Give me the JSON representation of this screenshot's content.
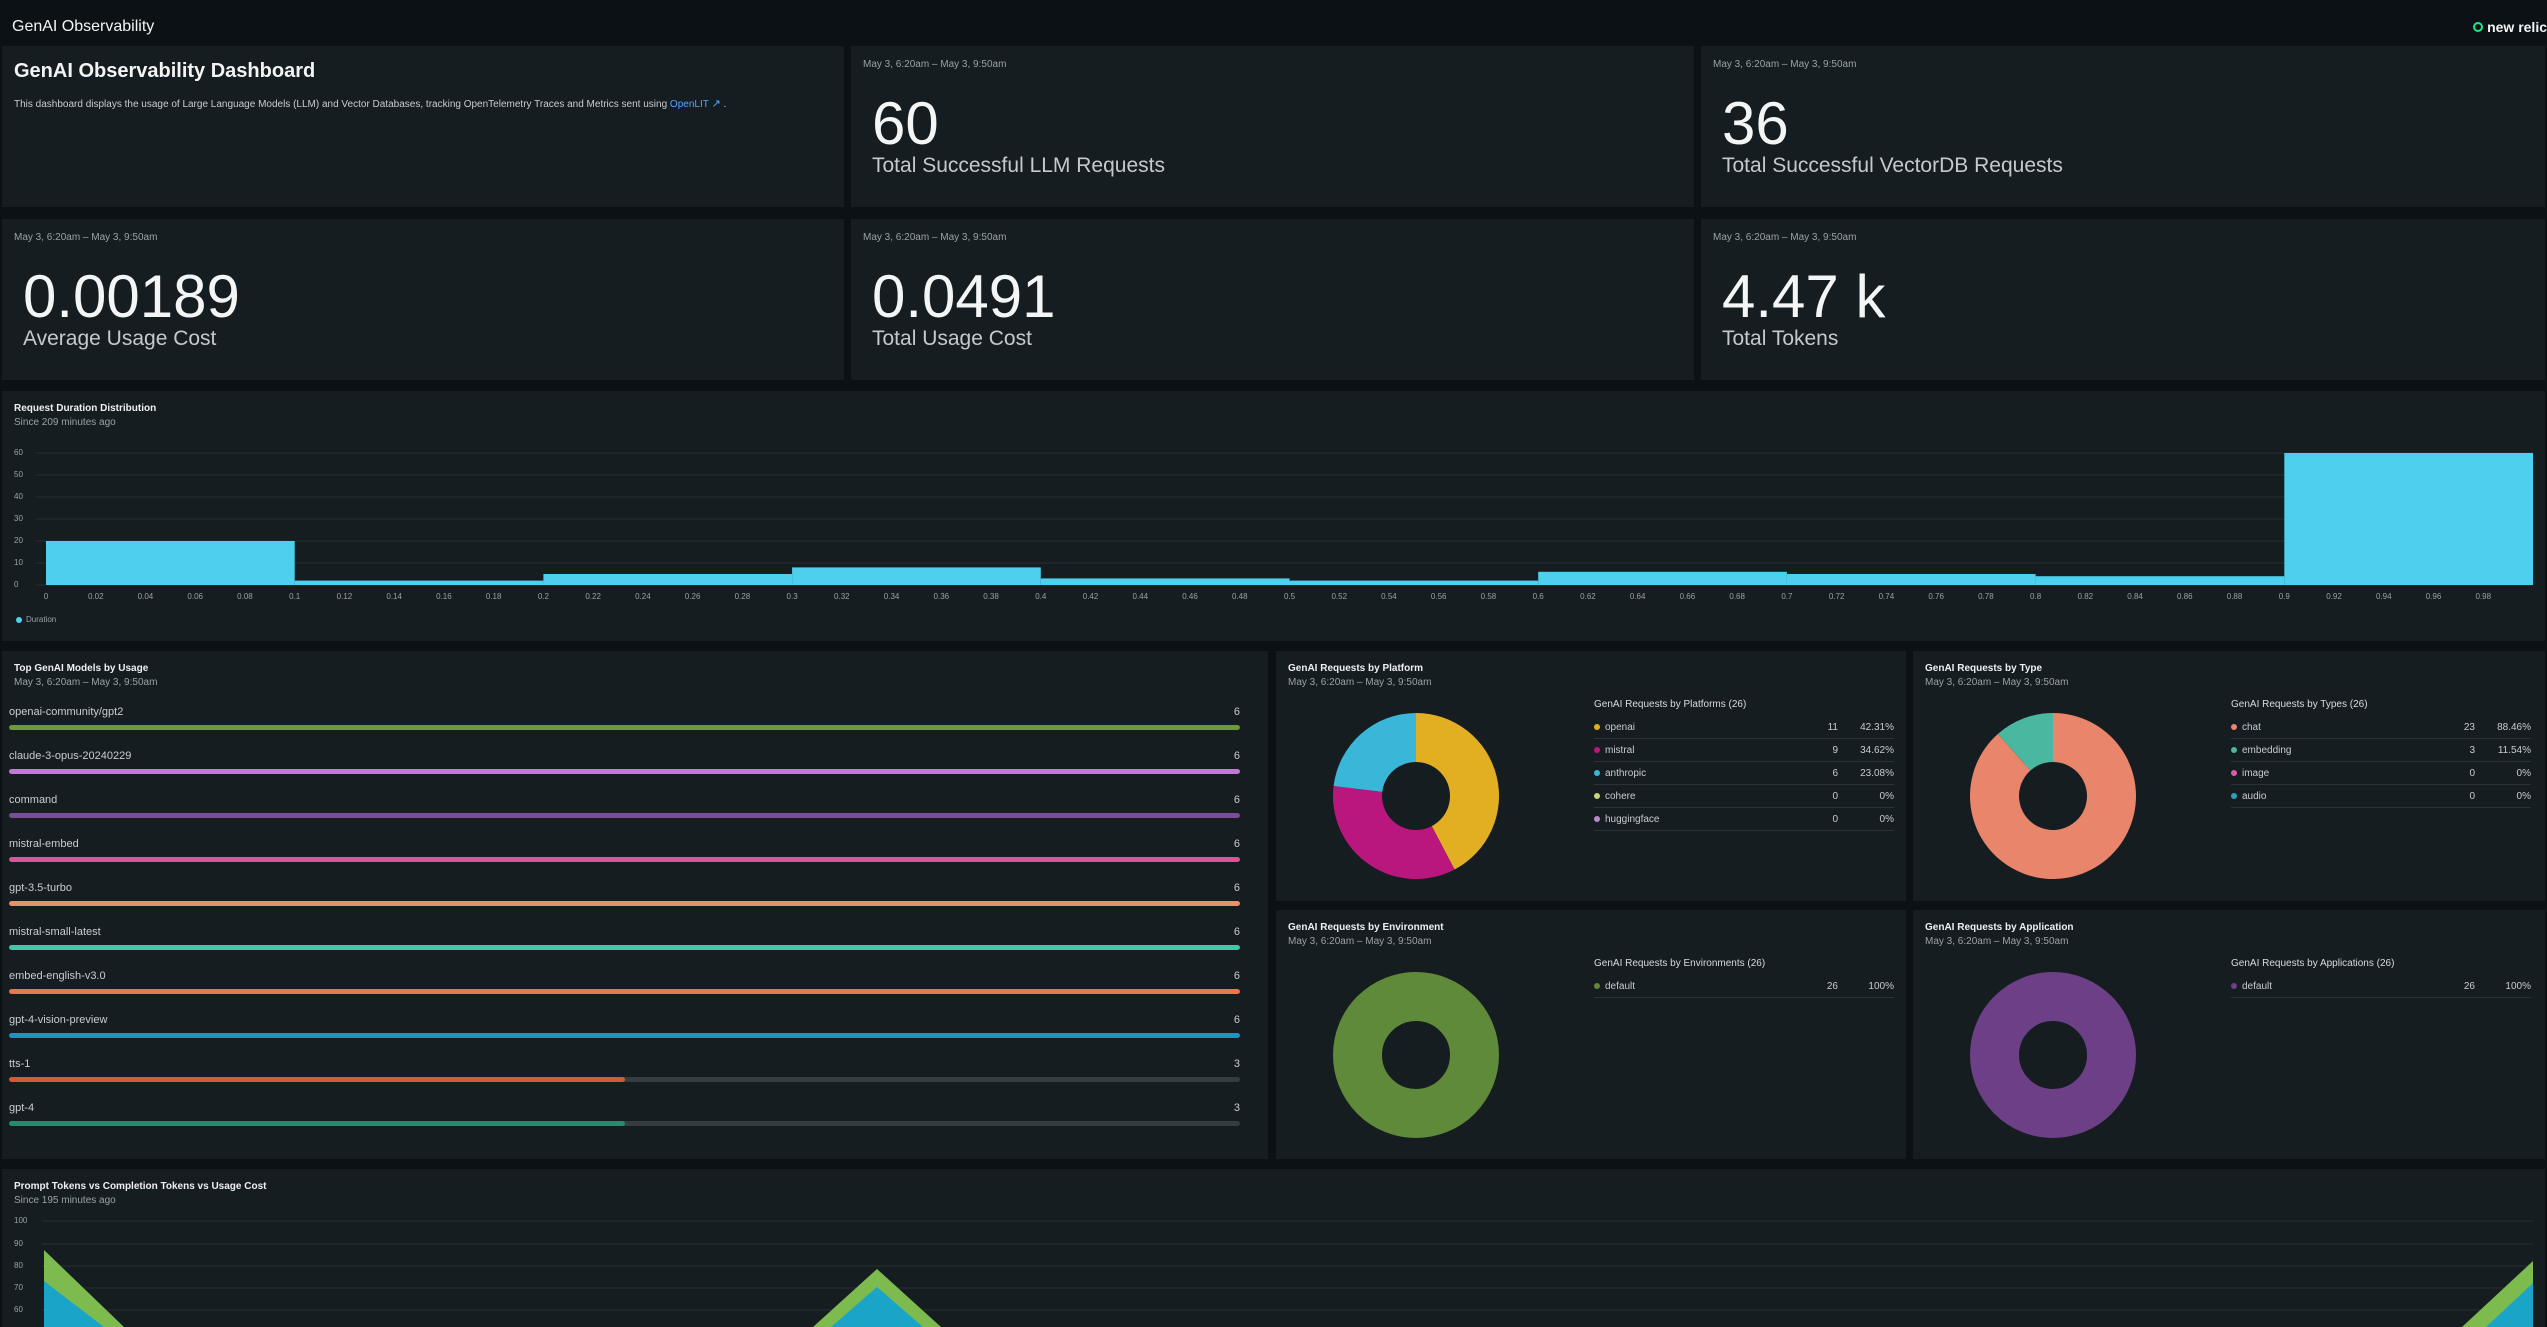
{
  "app": {
    "title": "GenAI Observability",
    "brand": "new relic"
  },
  "markdown": {
    "heading": "GenAI Observability Dashboard",
    "text": "This dashboard displays the usage of Large Language Models (LLM) and Vector Databases, tracking OpenTelemetry Traces and Metrics sent using",
    "link": "OpenLIT",
    "tail": "."
  },
  "billboards": [
    {
      "timestamp": "May 3, 6:20am – May 3, 9:50am",
      "value": "60",
      "label": "Total Successful LLM Requests"
    },
    {
      "timestamp": "May 3, 6:20am – May 3, 9:50am",
      "value": "36",
      "label": "Total Successful VectorDB Requests"
    },
    {
      "timestamp": "May 3, 6:20am – May 3, 9:50am",
      "value": "0.00189",
      "label": "Average Usage Cost"
    },
    {
      "timestamp": "May 3, 6:20am – May 3, 9:50am",
      "value": "0.0491",
      "label": "Total Usage Cost"
    },
    {
      "timestamp": "May 3, 6:20am – May 3, 9:50am",
      "value": "4.47 k",
      "label": "Total Tokens"
    }
  ],
  "histogram": {
    "title": "Request Duration Distribution",
    "subtitle": "Since 209 minutes ago",
    "legend": "Duration",
    "color": "#4dd0ee"
  },
  "top_models": {
    "title": "Top GenAI Models by Usage",
    "subtitle": "May 3, 6:20am – May 3, 9:50am",
    "max": 6,
    "items": [
      {
        "label": "openai-community/gpt2",
        "value": 6,
        "color": "#6b9a3a"
      },
      {
        "label": "claude-3-opus-20240229",
        "value": 6,
        "color": "#c07ad6"
      },
      {
        "label": "command",
        "value": 6,
        "color": "#7a4d96"
      },
      {
        "label": "mistral-embed",
        "value": 6,
        "color": "#d9559a"
      },
      {
        "label": "gpt-3.5-turbo",
        "value": 6,
        "color": "#e8906b"
      },
      {
        "label": "mistral-small-latest",
        "value": 6,
        "color": "#45c6a8"
      },
      {
        "label": "embed-english-v3.0",
        "value": 6,
        "color": "#e8774b"
      },
      {
        "label": "gpt-4-vision-preview",
        "value": 6,
        "color": "#1d93bd"
      },
      {
        "label": "tts-1",
        "value": 3,
        "color": "#d35a33"
      },
      {
        "label": "gpt-4",
        "value": 3,
        "color": "#1f8f70"
      }
    ]
  },
  "pies": [
    {
      "id": "platform",
      "title": "GenAI Requests by Platform",
      "timestamp": "May 3, 6:20am – May 3, 9:50am",
      "legend_title": "GenAI Requests by Platforms (26)",
      "items": [
        {
          "name": "openai",
          "count": "11",
          "pct": "42.31%",
          "value": 42.31,
          "color": "#e2ae22"
        },
        {
          "name": "mistral",
          "count": "9",
          "pct": "34.62%",
          "value": 34.62,
          "color": "#b9177e"
        },
        {
          "name": "anthropic",
          "count": "6",
          "pct": "23.08%",
          "value": 23.08,
          "color": "#3ab6d8"
        },
        {
          "name": "cohere",
          "count": "0",
          "pct": "0%",
          "value": 0,
          "color": "#c5d77a"
        },
        {
          "name": "huggingface",
          "count": "0",
          "pct": "0%",
          "value": 0,
          "color": "#b58ad0"
        }
      ]
    },
    {
      "id": "type",
      "title": "GenAI Requests by Type",
      "timestamp": "May 3, 6:20am – May 3, 9:50am",
      "legend_title": "GenAI Requests by Types (26)",
      "items": [
        {
          "name": "chat",
          "count": "23",
          "pct": "88.46%",
          "value": 88.46,
          "color": "#e8856a"
        },
        {
          "name": "embedding",
          "count": "3",
          "pct": "11.54%",
          "value": 11.54,
          "color": "#4ab7a0"
        },
        {
          "name": "image",
          "count": "0",
          "pct": "0%",
          "value": 0,
          "color": "#e05aa6"
        },
        {
          "name": "audio",
          "count": "0",
          "pct": "0%",
          "value": 0,
          "color": "#2aa0b6"
        }
      ]
    },
    {
      "id": "environment",
      "title": "GenAI Requests by Environment",
      "timestamp": "May 3, 6:20am – May 3, 9:50am",
      "legend_title": "GenAI Requests by Environments (26)",
      "items": [
        {
          "name": "default",
          "count": "26",
          "pct": "100%",
          "value": 100,
          "color": "#5e8a3a"
        }
      ]
    },
    {
      "id": "application",
      "title": "GenAI Requests by Application",
      "timestamp": "May 3, 6:20am – May 3, 9:50am",
      "legend_title": "GenAI Requests by Applications (26)",
      "items": [
        {
          "name": "default",
          "count": "26",
          "pct": "100%",
          "value": 100,
          "color": "#6d3f86"
        }
      ]
    }
  ],
  "area_chart": {
    "title": "Prompt Tokens vs Completion Tokens vs Usage Cost",
    "subtitle": "Since 195 minutes ago",
    "y_ticks": [
      "100",
      "90",
      "80",
      "70",
      "60"
    ]
  },
  "chart_data": [
    {
      "type": "bar",
      "title": "Request Duration Distribution",
      "x_ticks": [
        "0",
        "0.02",
        "0.04",
        "0.06",
        "0.08",
        "0.1",
        "0.12",
        "0.14",
        "0.16",
        "0.18",
        "0.2",
        "0.22",
        "0.24",
        "0.26",
        "0.28",
        "0.3",
        "0.32",
        "0.34",
        "0.36",
        "0.38",
        "0.4",
        "0.42",
        "0.44",
        "0.46",
        "0.48",
        "0.5",
        "0.52",
        "0.54",
        "0.56",
        "0.58",
        "0.6",
        "0.62",
        "0.64",
        "0.66",
        "0.68",
        "0.7",
        "0.72",
        "0.74",
        "0.76",
        "0.78",
        "0.8",
        "0.82",
        "0.84",
        "0.86",
        "0.88",
        "0.9",
        "0.92",
        "0.94",
        "0.96",
        "0.98"
      ],
      "y_ticks": [
        "60",
        "50",
        "40",
        "30",
        "20",
        "10",
        "0"
      ],
      "ylim": [
        0,
        60
      ],
      "bins": [
        {
          "x0": 0.0,
          "x1": 0.1,
          "value": 20
        },
        {
          "x0": 0.1,
          "x1": 0.2,
          "value": 2
        },
        {
          "x0": 0.2,
          "x1": 0.3,
          "value": 5
        },
        {
          "x0": 0.3,
          "x1": 0.4,
          "value": 8
        },
        {
          "x0": 0.4,
          "x1": 0.5,
          "value": 3
        },
        {
          "x0": 0.5,
          "x1": 0.6,
          "value": 2
        },
        {
          "x0": 0.6,
          "x1": 0.7,
          "value": 6
        },
        {
          "x0": 0.7,
          "x1": 0.8,
          "value": 5
        },
        {
          "x0": 0.8,
          "x1": 0.9,
          "value": 4
        },
        {
          "x0": 0.9,
          "x1": 1.0,
          "value": 60
        }
      ],
      "series": [
        {
          "name": "Duration"
        }
      ]
    }
  ]
}
